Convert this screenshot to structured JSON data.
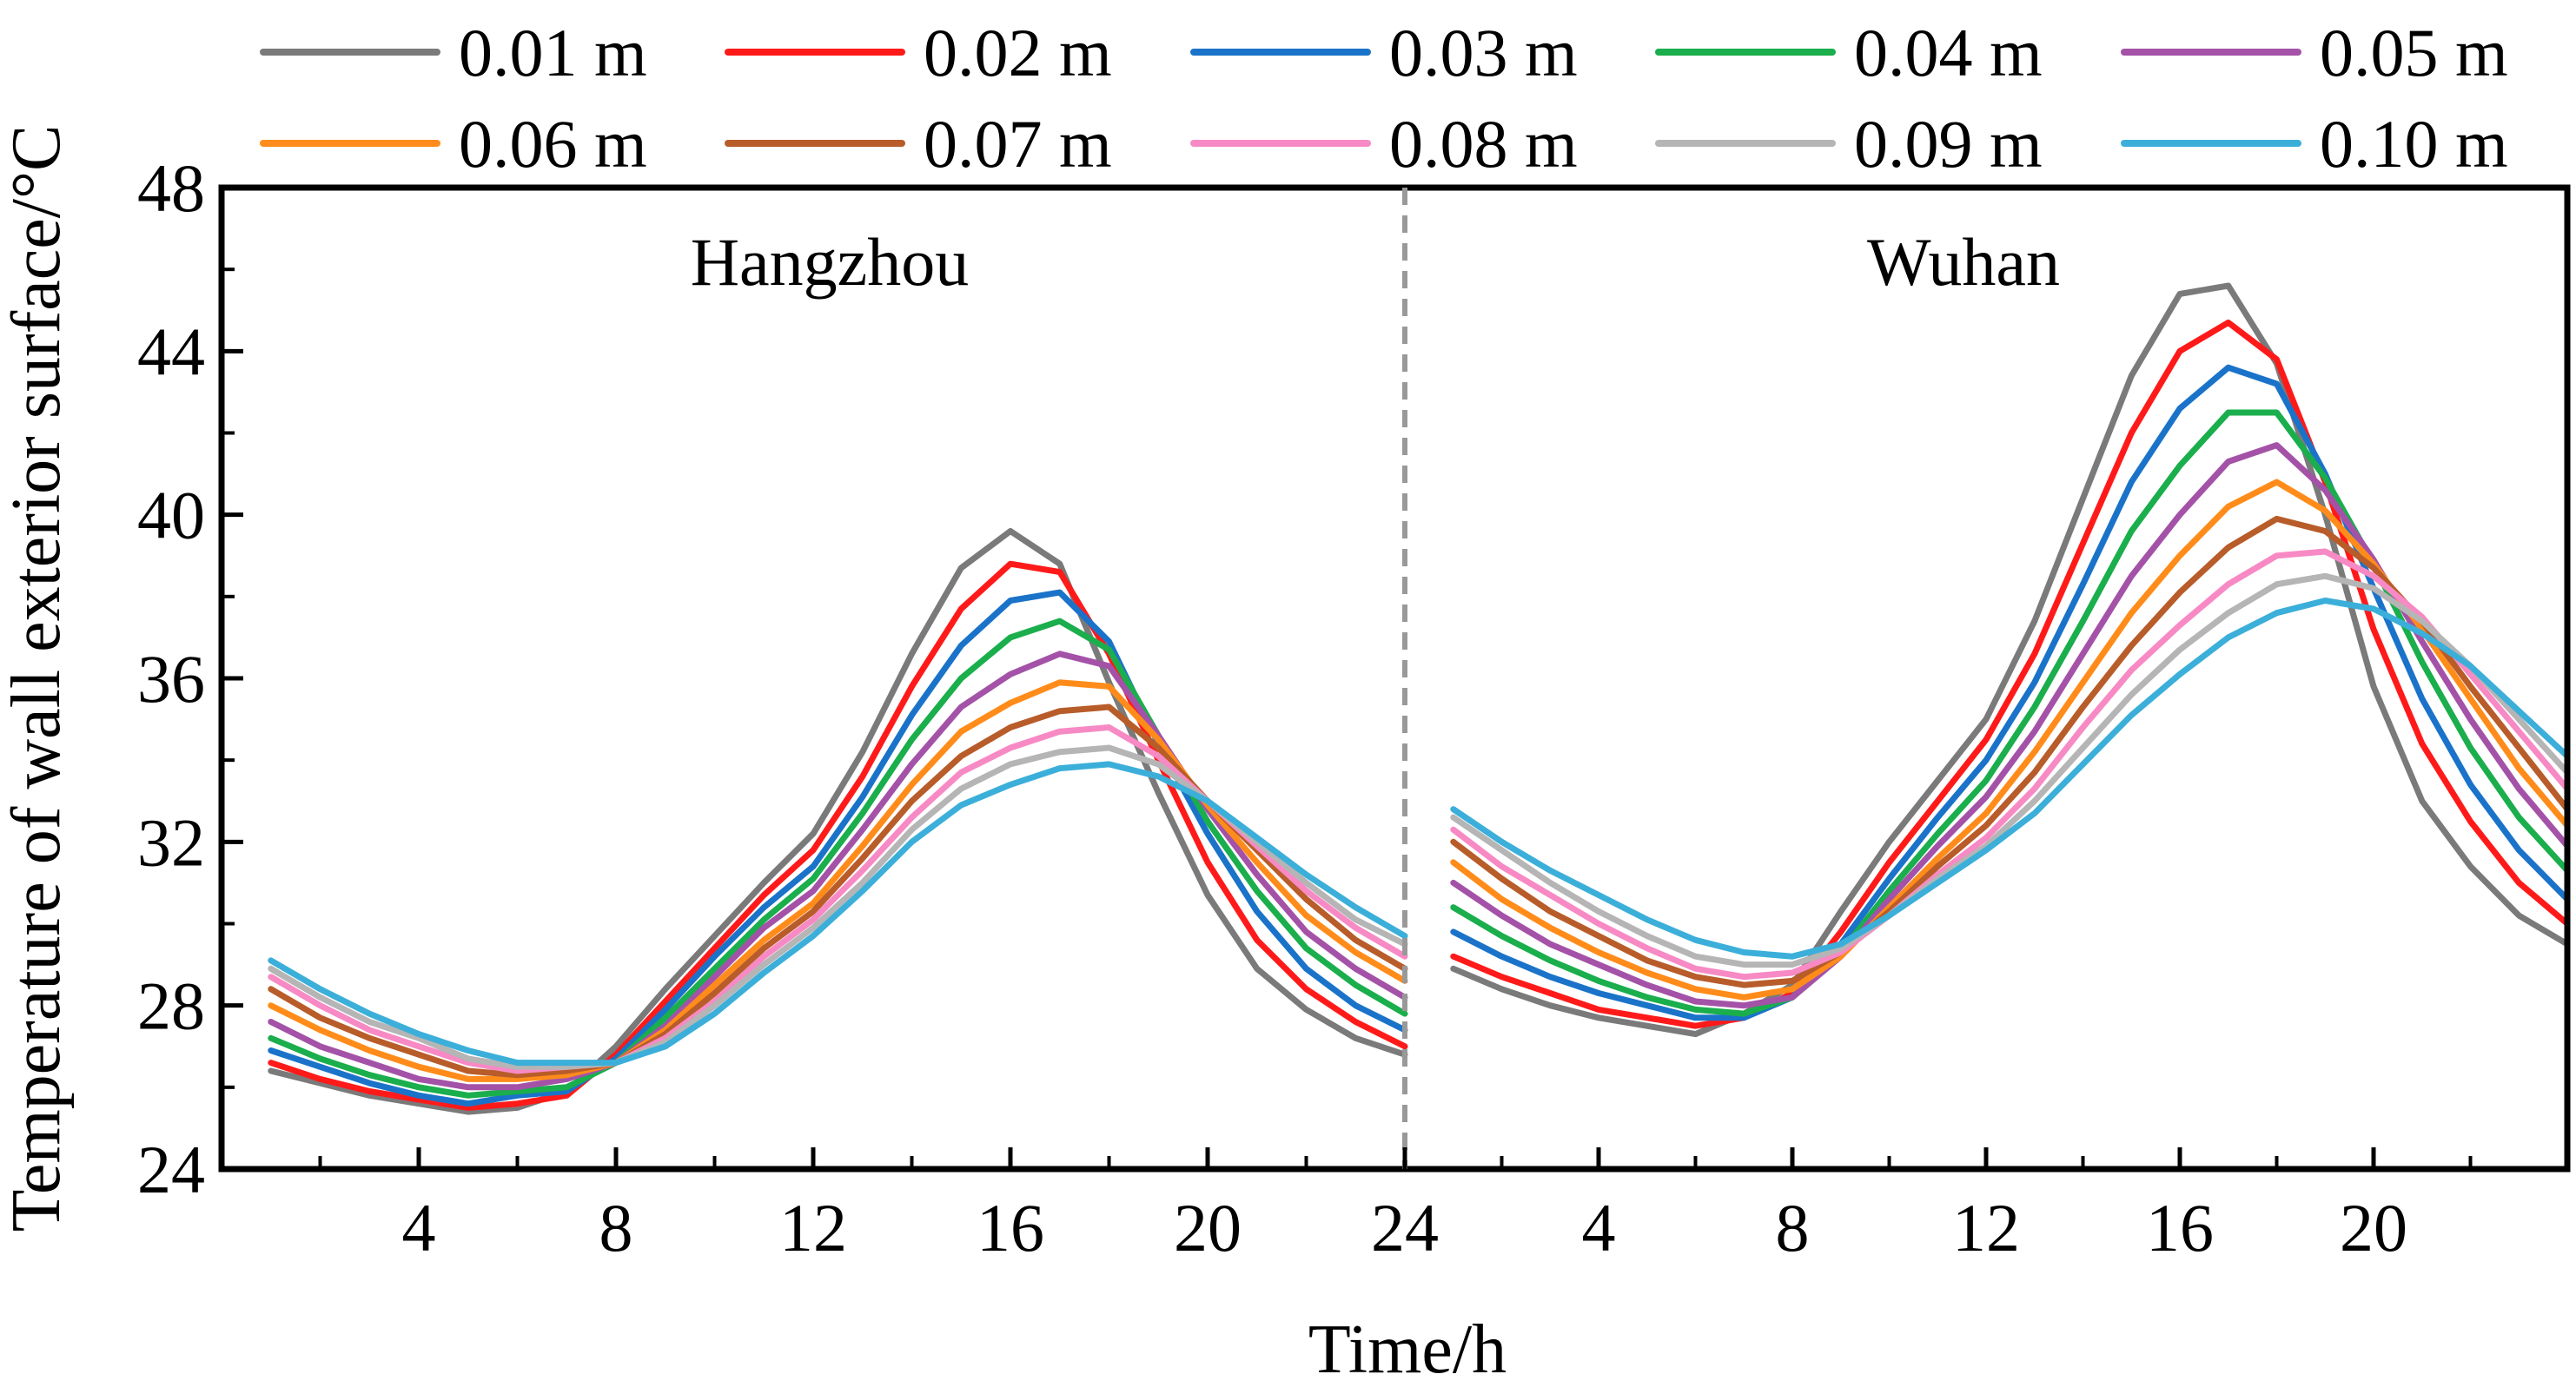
{
  "chart_data": {
    "type": "line",
    "xlabel": "Time/h",
    "ylabel": "Temperature of wall exterior surface/°C",
    "ylim": [
      24,
      48
    ],
    "yticks": [
      "24",
      "28",
      "32",
      "36",
      "40",
      "44",
      "48"
    ],
    "panels": [
      {
        "name": "Hangzhou",
        "xlim": [
          0,
          24
        ],
        "xticks": [
          "4",
          "8",
          "12",
          "16",
          "20",
          "24"
        ],
        "x": [
          1,
          2,
          3,
          4,
          5,
          6,
          7,
          8,
          9,
          10,
          11,
          12,
          13,
          14,
          15,
          16,
          17,
          18,
          19,
          20,
          21,
          22,
          23,
          24
        ],
        "series": [
          {
            "name": "0.01 m",
            "color": "#7a7a7a",
            "values": [
              26.4,
              26.1,
              25.8,
              25.6,
              25.4,
              25.5,
              25.9,
              27.0,
              28.4,
              29.7,
              31.0,
              32.2,
              34.2,
              36.6,
              38.7,
              39.6,
              38.8,
              35.9,
              33.2,
              30.7,
              28.9,
              27.9,
              27.2,
              26.8
            ]
          },
          {
            "name": "0.02 m",
            "color": "#ff1a1a",
            "values": [
              26.6,
              26.2,
              25.9,
              25.7,
              25.5,
              25.6,
              25.8,
              26.8,
              28.1,
              29.4,
              30.7,
              31.8,
              33.6,
              35.8,
              37.7,
              38.8,
              38.6,
              36.6,
              34.0,
              31.5,
              29.6,
              28.4,
              27.6,
              27.0
            ]
          },
          {
            "name": "0.03 m",
            "color": "#1a73c9",
            "values": [
              26.9,
              26.5,
              26.1,
              25.8,
              25.6,
              25.8,
              25.9,
              26.7,
              27.9,
              29.2,
              30.4,
              31.4,
              33.1,
              35.1,
              36.8,
              37.9,
              38.1,
              36.9,
              34.4,
              32.2,
              30.3,
              28.9,
              28.0,
              27.4
            ]
          },
          {
            "name": "0.04 m",
            "color": "#1aae4c",
            "values": [
              27.2,
              26.7,
              26.3,
              26.0,
              25.8,
              25.9,
              26.0,
              26.6,
              27.7,
              28.9,
              30.1,
              31.1,
              32.7,
              34.5,
              36.0,
              37.0,
              37.4,
              36.7,
              34.6,
              32.5,
              30.8,
              29.4,
              28.5,
              27.8
            ]
          },
          {
            "name": "0.05 m",
            "color": "#a452a8",
            "values": [
              27.6,
              27.0,
              26.6,
              26.2,
              26.0,
              26.0,
              26.2,
              26.6,
              27.5,
              28.7,
              29.9,
              30.8,
              32.3,
              33.9,
              35.3,
              36.1,
              36.6,
              36.3,
              34.6,
              32.8,
              31.2,
              29.8,
              28.9,
              28.2
            ]
          },
          {
            "name": "0.06 m",
            "color": "#ff8c1a",
            "values": [
              28.0,
              27.4,
              26.9,
              26.5,
              26.2,
              26.2,
              26.3,
              26.6,
              27.4,
              28.5,
              29.6,
              30.5,
              31.9,
              33.4,
              34.7,
              35.4,
              35.9,
              35.8,
              34.5,
              32.9,
              31.5,
              30.2,
              29.3,
              28.6
            ]
          },
          {
            "name": "0.07 m",
            "color": "#b85c2a",
            "values": [
              28.4,
              27.7,
              27.2,
              26.8,
              26.4,
              26.3,
              26.4,
              26.6,
              27.3,
              28.3,
              29.4,
              30.3,
              31.6,
              33.0,
              34.1,
              34.8,
              35.2,
              35.3,
              34.3,
              33.0,
              31.8,
              30.6,
              29.6,
              28.9
            ]
          },
          {
            "name": "0.08 m",
            "color": "#f78ac4",
            "values": [
              28.7,
              28.0,
              27.4,
              27.0,
              26.6,
              26.4,
              26.5,
              26.6,
              27.2,
              28.1,
              29.2,
              30.1,
              31.3,
              32.6,
              33.7,
              34.3,
              34.7,
              34.8,
              34.1,
              33.0,
              31.9,
              30.8,
              29.9,
              29.2
            ]
          },
          {
            "name": "0.09 m",
            "color": "#b5b5b5",
            "values": [
              28.9,
              28.2,
              27.6,
              27.2,
              26.7,
              26.5,
              26.5,
              26.6,
              27.1,
              28.0,
              29.0,
              29.9,
              31.0,
              32.3,
              33.3,
              33.9,
              34.2,
              34.3,
              33.9,
              33.0,
              32.0,
              31.0,
              30.1,
              29.5
            ]
          },
          {
            "name": "0.10 m",
            "color": "#3bafd9",
            "values": [
              29.1,
              28.4,
              27.8,
              27.3,
              26.9,
              26.6,
              26.6,
              26.6,
              27.0,
              27.8,
              28.8,
              29.7,
              30.8,
              32.0,
              32.9,
              33.4,
              33.8,
              33.9,
              33.6,
              33.0,
              32.1,
              31.2,
              30.4,
              29.7
            ]
          }
        ]
      },
      {
        "name": "Wuhan",
        "xlim": [
          0,
          24
        ],
        "xticks": [
          "4",
          "8",
          "12",
          "16",
          "20"
        ],
        "x": [
          1,
          2,
          3,
          4,
          5,
          6,
          7,
          8,
          9,
          10,
          11,
          12,
          13,
          14,
          15,
          16,
          17,
          18,
          19,
          20,
          21,
          22,
          23,
          24
        ],
        "series": [
          {
            "name": "0.01 m",
            "color": "#7a7a7a",
            "values": [
              28.9,
              28.4,
              28.0,
              27.7,
              27.5,
              27.3,
              27.8,
              28.5,
              30.3,
              32.0,
              33.5,
              35.0,
              37.4,
              40.4,
              43.4,
              45.4,
              45.6,
              43.7,
              40.0,
              35.8,
              33.0,
              31.4,
              30.2,
              29.5
            ]
          },
          {
            "name": "0.02 m",
            "color": "#ff1a1a",
            "values": [
              29.2,
              28.7,
              28.3,
              27.9,
              27.7,
              27.5,
              27.7,
              28.3,
              29.8,
              31.5,
              33.0,
              34.5,
              36.6,
              39.3,
              42.0,
              44.0,
              44.7,
              43.8,
              40.8,
              37.2,
              34.4,
              32.5,
              31.0,
              30.0
            ]
          },
          {
            "name": "0.03 m",
            "color": "#1a73c9",
            "values": [
              29.8,
              29.2,
              28.7,
              28.3,
              28.0,
              27.7,
              27.7,
              28.2,
              29.5,
              31.1,
              32.6,
              34.0,
              35.9,
              38.3,
              40.8,
              42.6,
              43.6,
              43.2,
              41.0,
              38.2,
              35.5,
              33.4,
              31.8,
              30.6
            ]
          },
          {
            "name": "0.04 m",
            "color": "#1aae4c",
            "values": [
              30.4,
              29.7,
              29.1,
              28.6,
              28.2,
              27.9,
              27.8,
              28.2,
              29.3,
              30.8,
              32.2,
              33.5,
              35.3,
              37.4,
              39.6,
              41.2,
              42.5,
              42.5,
              40.9,
              38.8,
              36.4,
              34.3,
              32.6,
              31.3
            ]
          },
          {
            "name": "0.05 m",
            "color": "#a452a8",
            "values": [
              31.0,
              30.2,
              29.5,
              29.0,
              28.5,
              28.1,
              28.0,
              28.2,
              29.2,
              30.6,
              31.9,
              33.1,
              34.7,
              36.6,
              38.5,
              40.0,
              41.3,
              41.7,
              40.6,
              38.9,
              36.9,
              35.0,
              33.3,
              31.9
            ]
          },
          {
            "name": "0.06 m",
            "color": "#ff8c1a",
            "values": [
              31.5,
              30.6,
              29.9,
              29.3,
              28.8,
              28.4,
              28.2,
              28.4,
              29.2,
              30.4,
              31.6,
              32.7,
              34.2,
              35.9,
              37.6,
              39.0,
              40.2,
              40.8,
              40.1,
              38.8,
              37.2,
              35.5,
              33.8,
              32.4
            ]
          },
          {
            "name": "0.07 m",
            "color": "#b85c2a",
            "values": [
              32.0,
              31.1,
              30.3,
              29.7,
              29.1,
              28.7,
              28.5,
              28.6,
              29.3,
              30.3,
              31.4,
              32.4,
              33.7,
              35.3,
              36.8,
              38.1,
              39.2,
              39.9,
              39.6,
              38.7,
              37.4,
              35.8,
              34.3,
              32.8
            ]
          },
          {
            "name": "0.08 m",
            "color": "#f78ac4",
            "values": [
              32.3,
              31.4,
              30.7,
              30.0,
              29.4,
              28.9,
              28.7,
              28.8,
              29.3,
              30.2,
              31.2,
              32.1,
              33.3,
              34.8,
              36.2,
              37.3,
              38.3,
              39.0,
              39.1,
              38.5,
              37.5,
              36.1,
              34.7,
              33.3
            ]
          },
          {
            "name": "0.09 m",
            "color": "#b5b5b5",
            "values": [
              32.6,
              31.8,
              31.0,
              30.3,
              29.7,
              29.2,
              29.0,
              29.0,
              29.4,
              30.2,
              31.1,
              31.9,
              33.0,
              34.3,
              35.6,
              36.7,
              37.6,
              38.3,
              38.5,
              38.2,
              37.4,
              36.3,
              35.0,
              33.7
            ]
          },
          {
            "name": "0.10 m",
            "color": "#3bafd9",
            "values": [
              32.8,
              32.0,
              31.3,
              30.7,
              30.1,
              29.6,
              29.3,
              29.2,
              29.5,
              30.2,
              31.0,
              31.8,
              32.7,
              33.9,
              35.1,
              36.1,
              37.0,
              37.6,
              37.9,
              37.7,
              37.1,
              36.3,
              35.2,
              34.1
            ]
          }
        ]
      }
    ]
  }
}
